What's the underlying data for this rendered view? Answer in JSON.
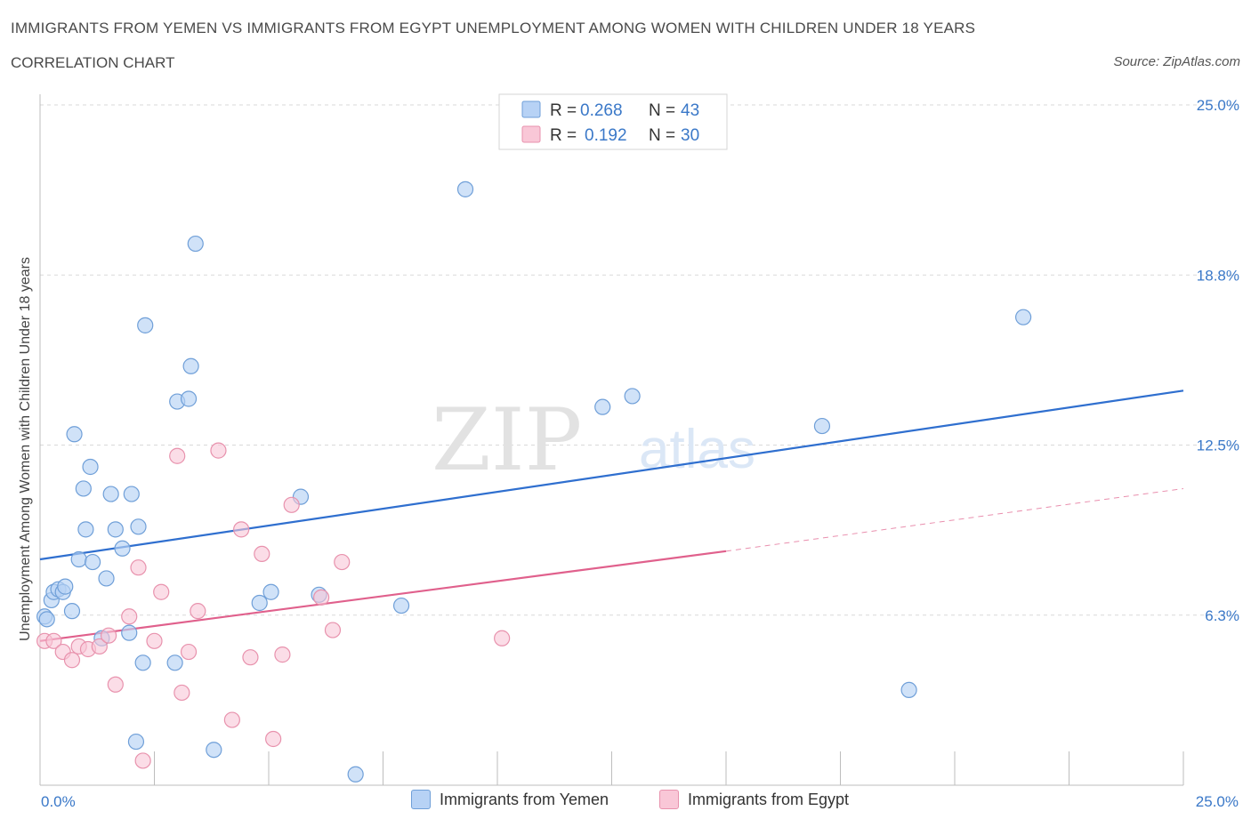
{
  "header": {
    "title": "IMMIGRANTS FROM YEMEN VS IMMIGRANTS FROM EGYPT UNEMPLOYMENT AMONG WOMEN WITH CHILDREN UNDER 18 YEARS",
    "subtitle": "CORRELATION CHART",
    "source": "Source: ZipAtlas.com"
  },
  "watermark": {
    "zip": "ZIP",
    "atlas": "atlas"
  },
  "colors": {
    "blue_fill": "#b7d2f5",
    "blue_stroke": "#6f9fd8",
    "blue_line": "#2f6fcf",
    "pink_fill": "#f9c7d7",
    "pink_stroke": "#e892ad",
    "pink_line": "#e0608c",
    "tick_text": "#3a78c8",
    "grid": "#d9d9d9"
  },
  "legend_top": {
    "rows": [
      {
        "r_label": "R =",
        "r_value": "0.268",
        "n_label": "N =",
        "n_value": "43"
      },
      {
        "r_label": "R =",
        "r_value": "0.192",
        "n_label": "N =",
        "n_value": "30"
      }
    ]
  },
  "legend_bottom": {
    "items": [
      "Immigrants from Yemen",
      "Immigrants from Egypt"
    ]
  },
  "chart_data": {
    "type": "scatter",
    "title": "IMMIGRANTS FROM YEMEN VS IMMIGRANTS FROM EGYPT UNEMPLOYMENT AMONG WOMEN WITH CHILDREN UNDER 18 YEARS",
    "xlabel": "",
    "ylabel": "Unemployment Among Women with Children Under 18 years",
    "xlim": [
      0,
      25
    ],
    "ylim": [
      0,
      25
    ],
    "x_tick_labels": [
      "0.0%",
      "25.0%"
    ],
    "y_ticks": [
      25.0,
      18.75,
      12.5,
      6.25
    ],
    "y_tick_labels": [
      "25.0%",
      "18.8%",
      "12.5%",
      "6.3%"
    ],
    "series": [
      {
        "name": "Immigrants from Yemen",
        "r": 0.268,
        "n": 43,
        "trend": {
          "x": [
            0,
            25
          ],
          "y": [
            8.3,
            14.5
          ]
        },
        "points": [
          [
            0.1,
            6.2
          ],
          [
            0.15,
            6.1
          ],
          [
            0.25,
            6.8
          ],
          [
            0.3,
            7.1
          ],
          [
            0.4,
            7.2
          ],
          [
            0.5,
            7.1
          ],
          [
            0.55,
            7.3
          ],
          [
            0.7,
            6.4
          ],
          [
            0.75,
            12.9
          ],
          [
            0.85,
            8.3
          ],
          [
            0.95,
            10.9
          ],
          [
            1.0,
            9.4
          ],
          [
            1.1,
            11.7
          ],
          [
            1.15,
            8.2
          ],
          [
            1.35,
            5.4
          ],
          [
            1.45,
            7.6
          ],
          [
            1.55,
            10.7
          ],
          [
            1.65,
            9.4
          ],
          [
            1.8,
            8.7
          ],
          [
            1.95,
            5.6
          ],
          [
            2.0,
            10.7
          ],
          [
            2.1,
            1.6
          ],
          [
            2.15,
            9.5
          ],
          [
            2.25,
            4.5
          ],
          [
            2.3,
            16.9
          ],
          [
            2.95,
            4.5
          ],
          [
            3.0,
            14.1
          ],
          [
            3.25,
            14.2
          ],
          [
            3.3,
            15.4
          ],
          [
            3.4,
            19.9
          ],
          [
            3.8,
            1.3
          ],
          [
            4.8,
            6.7
          ],
          [
            5.05,
            7.1
          ],
          [
            5.7,
            10.6
          ],
          [
            6.1,
            7.0
          ],
          [
            6.9,
            0.4
          ],
          [
            7.9,
            6.6
          ],
          [
            9.3,
            21.9
          ],
          [
            12.3,
            13.9
          ],
          [
            12.95,
            14.3
          ],
          [
            17.1,
            13.2
          ],
          [
            19.0,
            3.5
          ],
          [
            21.5,
            17.2
          ]
        ]
      },
      {
        "name": "Immigrants from Egypt",
        "r": 0.192,
        "n": 30,
        "trend": {
          "x": [
            0,
            15
          ],
          "y": [
            5.3,
            8.6
          ]
        },
        "trend_extension": {
          "x": [
            15,
            25
          ],
          "y": [
            8.6,
            10.9
          ]
        },
        "points": [
          [
            0.1,
            5.3
          ],
          [
            0.3,
            5.3
          ],
          [
            0.5,
            4.9
          ],
          [
            0.7,
            4.6
          ],
          [
            0.85,
            5.1
          ],
          [
            1.05,
            5.0
          ],
          [
            1.3,
            5.1
          ],
          [
            1.5,
            5.5
          ],
          [
            1.65,
            3.7
          ],
          [
            1.95,
            6.2
          ],
          [
            2.15,
            8.0
          ],
          [
            2.25,
            0.9
          ],
          [
            2.5,
            5.3
          ],
          [
            2.65,
            7.1
          ],
          [
            3.0,
            12.1
          ],
          [
            3.1,
            3.4
          ],
          [
            3.25,
            4.9
          ],
          [
            3.45,
            6.4
          ],
          [
            3.9,
            12.3
          ],
          [
            4.2,
            2.4
          ],
          [
            4.4,
            9.4
          ],
          [
            4.6,
            4.7
          ],
          [
            4.85,
            8.5
          ],
          [
            5.1,
            1.7
          ],
          [
            5.3,
            4.8
          ],
          [
            5.5,
            10.3
          ],
          [
            6.15,
            6.9
          ],
          [
            6.4,
            5.7
          ],
          [
            6.6,
            8.2
          ],
          [
            10.1,
            5.4
          ]
        ]
      }
    ]
  }
}
